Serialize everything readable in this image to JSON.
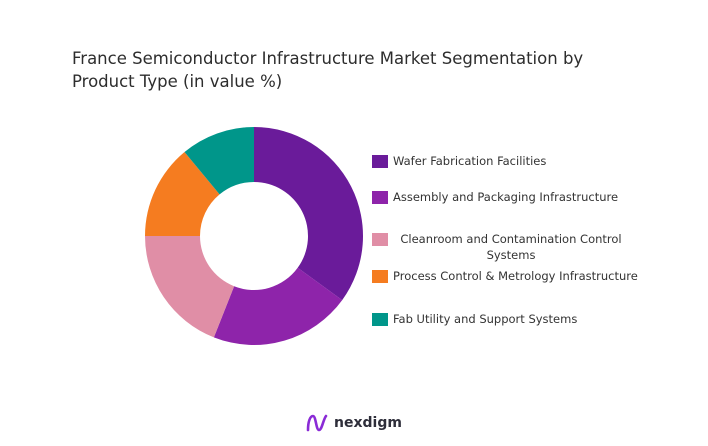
{
  "title": {
    "line1": "France Semiconductor Infrastructure Market Segmentation by",
    "line2": "Product Type (in value %)"
  },
  "brand": {
    "name": "nexdigm",
    "accent": "#8a2bd6"
  },
  "chart_data": {
    "type": "pie",
    "subtype": "donut",
    "title": "France Semiconductor Infrastructure Market Segmentation by Product Type (in value %)",
    "legend_placement": "right",
    "categories": [
      "Wafer Fabrication Facilities",
      "Assembly and Packaging Infrastructure",
      "Cleanroom and Contamination Control Systems",
      "Process Control & Metrology Infrastructure",
      "Fab Utility and Support Systems"
    ],
    "values": [
      35,
      21,
      19,
      14,
      11
    ],
    "colors": [
      "#6a1b9a",
      "#8e24aa",
      "#e08ea6",
      "#f57c20",
      "#00968a"
    ]
  }
}
